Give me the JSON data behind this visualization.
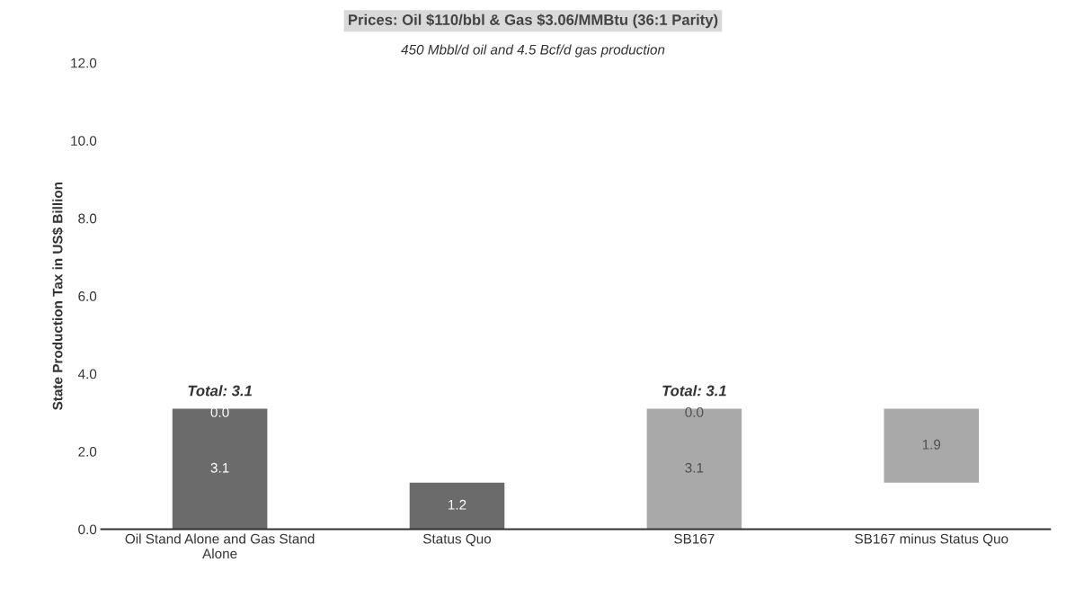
{
  "chart_data": {
    "type": "bar",
    "title": "Prices: Oil $110/bbl & Gas $3.06/MMBtu (36:1 Parity)",
    "subtitle": "450 Mbbl/d oil and 4.5 Bcf/d gas production",
    "ylabel": "State Production Tax in US$ Billion",
    "categories": [
      "Oil Stand Alone and Gas Stand\nAlone",
      "Status Quo",
      "SB167",
      "SB167 minus Status Quo"
    ],
    "stacked": true,
    "series": [
      {
        "base": [
          0,
          0,
          0,
          1.2
        ],
        "colors": [
          "#6b6b6b",
          "#6b6b6b",
          "#a9a9a9",
          "#a9a9a9"
        ],
        "values": [
          3.1,
          1.2,
          3.1,
          1.9
        ],
        "value_labels": [
          "3.1",
          "1.2",
          "3.1",
          "1.9"
        ]
      },
      {
        "colors": [
          "#6b6b6b",
          "#6b6b6b",
          "#a9a9a9",
          "#a9a9a9"
        ],
        "values": [
          0.0,
          null,
          0.0,
          null
        ],
        "value_labels": [
          "0.0",
          null,
          "0.0",
          null
        ]
      }
    ],
    "totals": [
      "Total: 3.1",
      null,
      "Total: 3.1",
      null
    ],
    "ylim": [
      0,
      12
    ],
    "yticks": [
      {
        "value": 0,
        "label": "0.0"
      },
      {
        "value": 2,
        "label": "2.0"
      },
      {
        "value": 4,
        "label": "4.0"
      },
      {
        "value": 6,
        "label": "6.0"
      },
      {
        "value": 8,
        "label": "8.0"
      },
      {
        "value": 10,
        "label": "10.0"
      },
      {
        "value": 12,
        "label": "12.0"
      }
    ],
    "grid": false,
    "legend": false
  }
}
